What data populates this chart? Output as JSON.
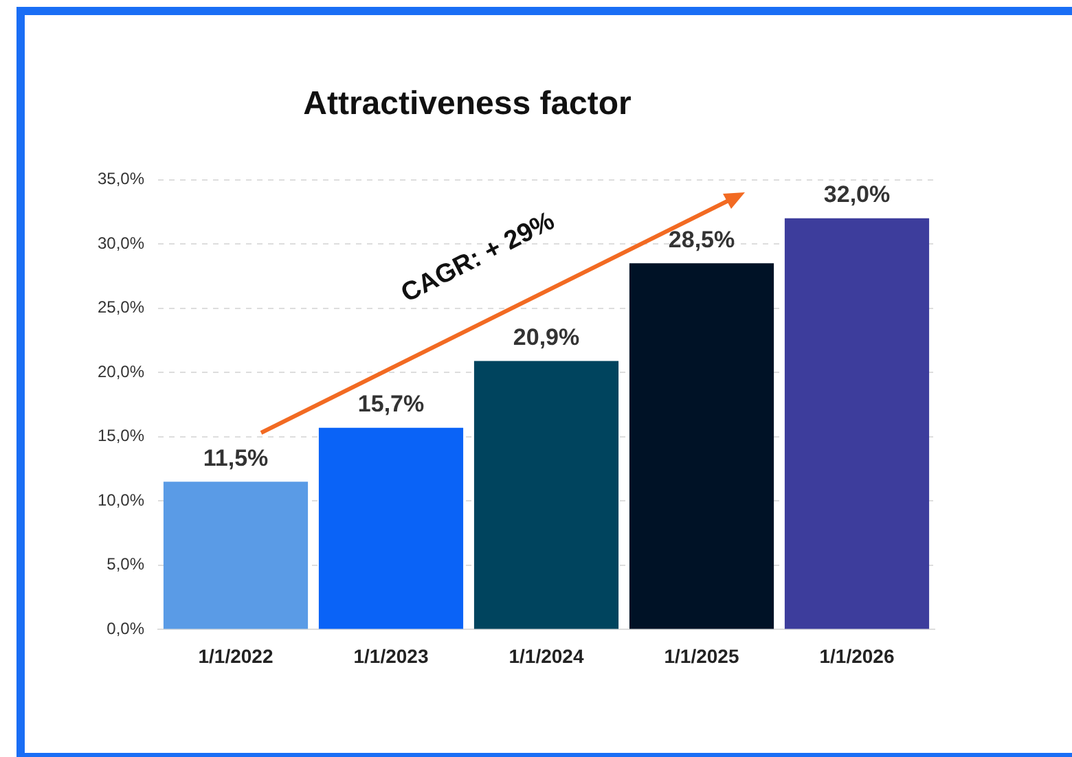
{
  "chart_data": {
    "type": "bar",
    "title": "Attractiveness factor",
    "categories": [
      "1/1/2022",
      "1/1/2023",
      "1/1/2024",
      "1/1/2025",
      "1/1/2026"
    ],
    "values": [
      11.5,
      15.7,
      20.9,
      28.5,
      32.0
    ],
    "colors": [
      "#5a9be6",
      "#0a63f7",
      "#00445e",
      "#001226",
      "#3d3d9c"
    ],
    "value_labels": [
      "11,5%",
      "15,7%",
      "20,9%",
      "28,5%",
      "32,0%"
    ],
    "ylim": [
      0,
      35
    ],
    "yticks": [
      {
        "value": 0,
        "label": "0,0%"
      },
      {
        "value": 5,
        "label": "5,0%"
      },
      {
        "value": 10,
        "label": "10,0%"
      },
      {
        "value": 15,
        "label": "15,0%"
      },
      {
        "value": 20,
        "label": "20,0%"
      },
      {
        "value": 25,
        "label": "25,0%"
      },
      {
        "value": 30,
        "label": "30,0%"
      },
      {
        "value": 35,
        "label": "35,0%"
      }
    ],
    "grid": "y",
    "line_style": "dashed",
    "legend": false,
    "annotations": [
      "CAGR: + 29%"
    ]
  }
}
